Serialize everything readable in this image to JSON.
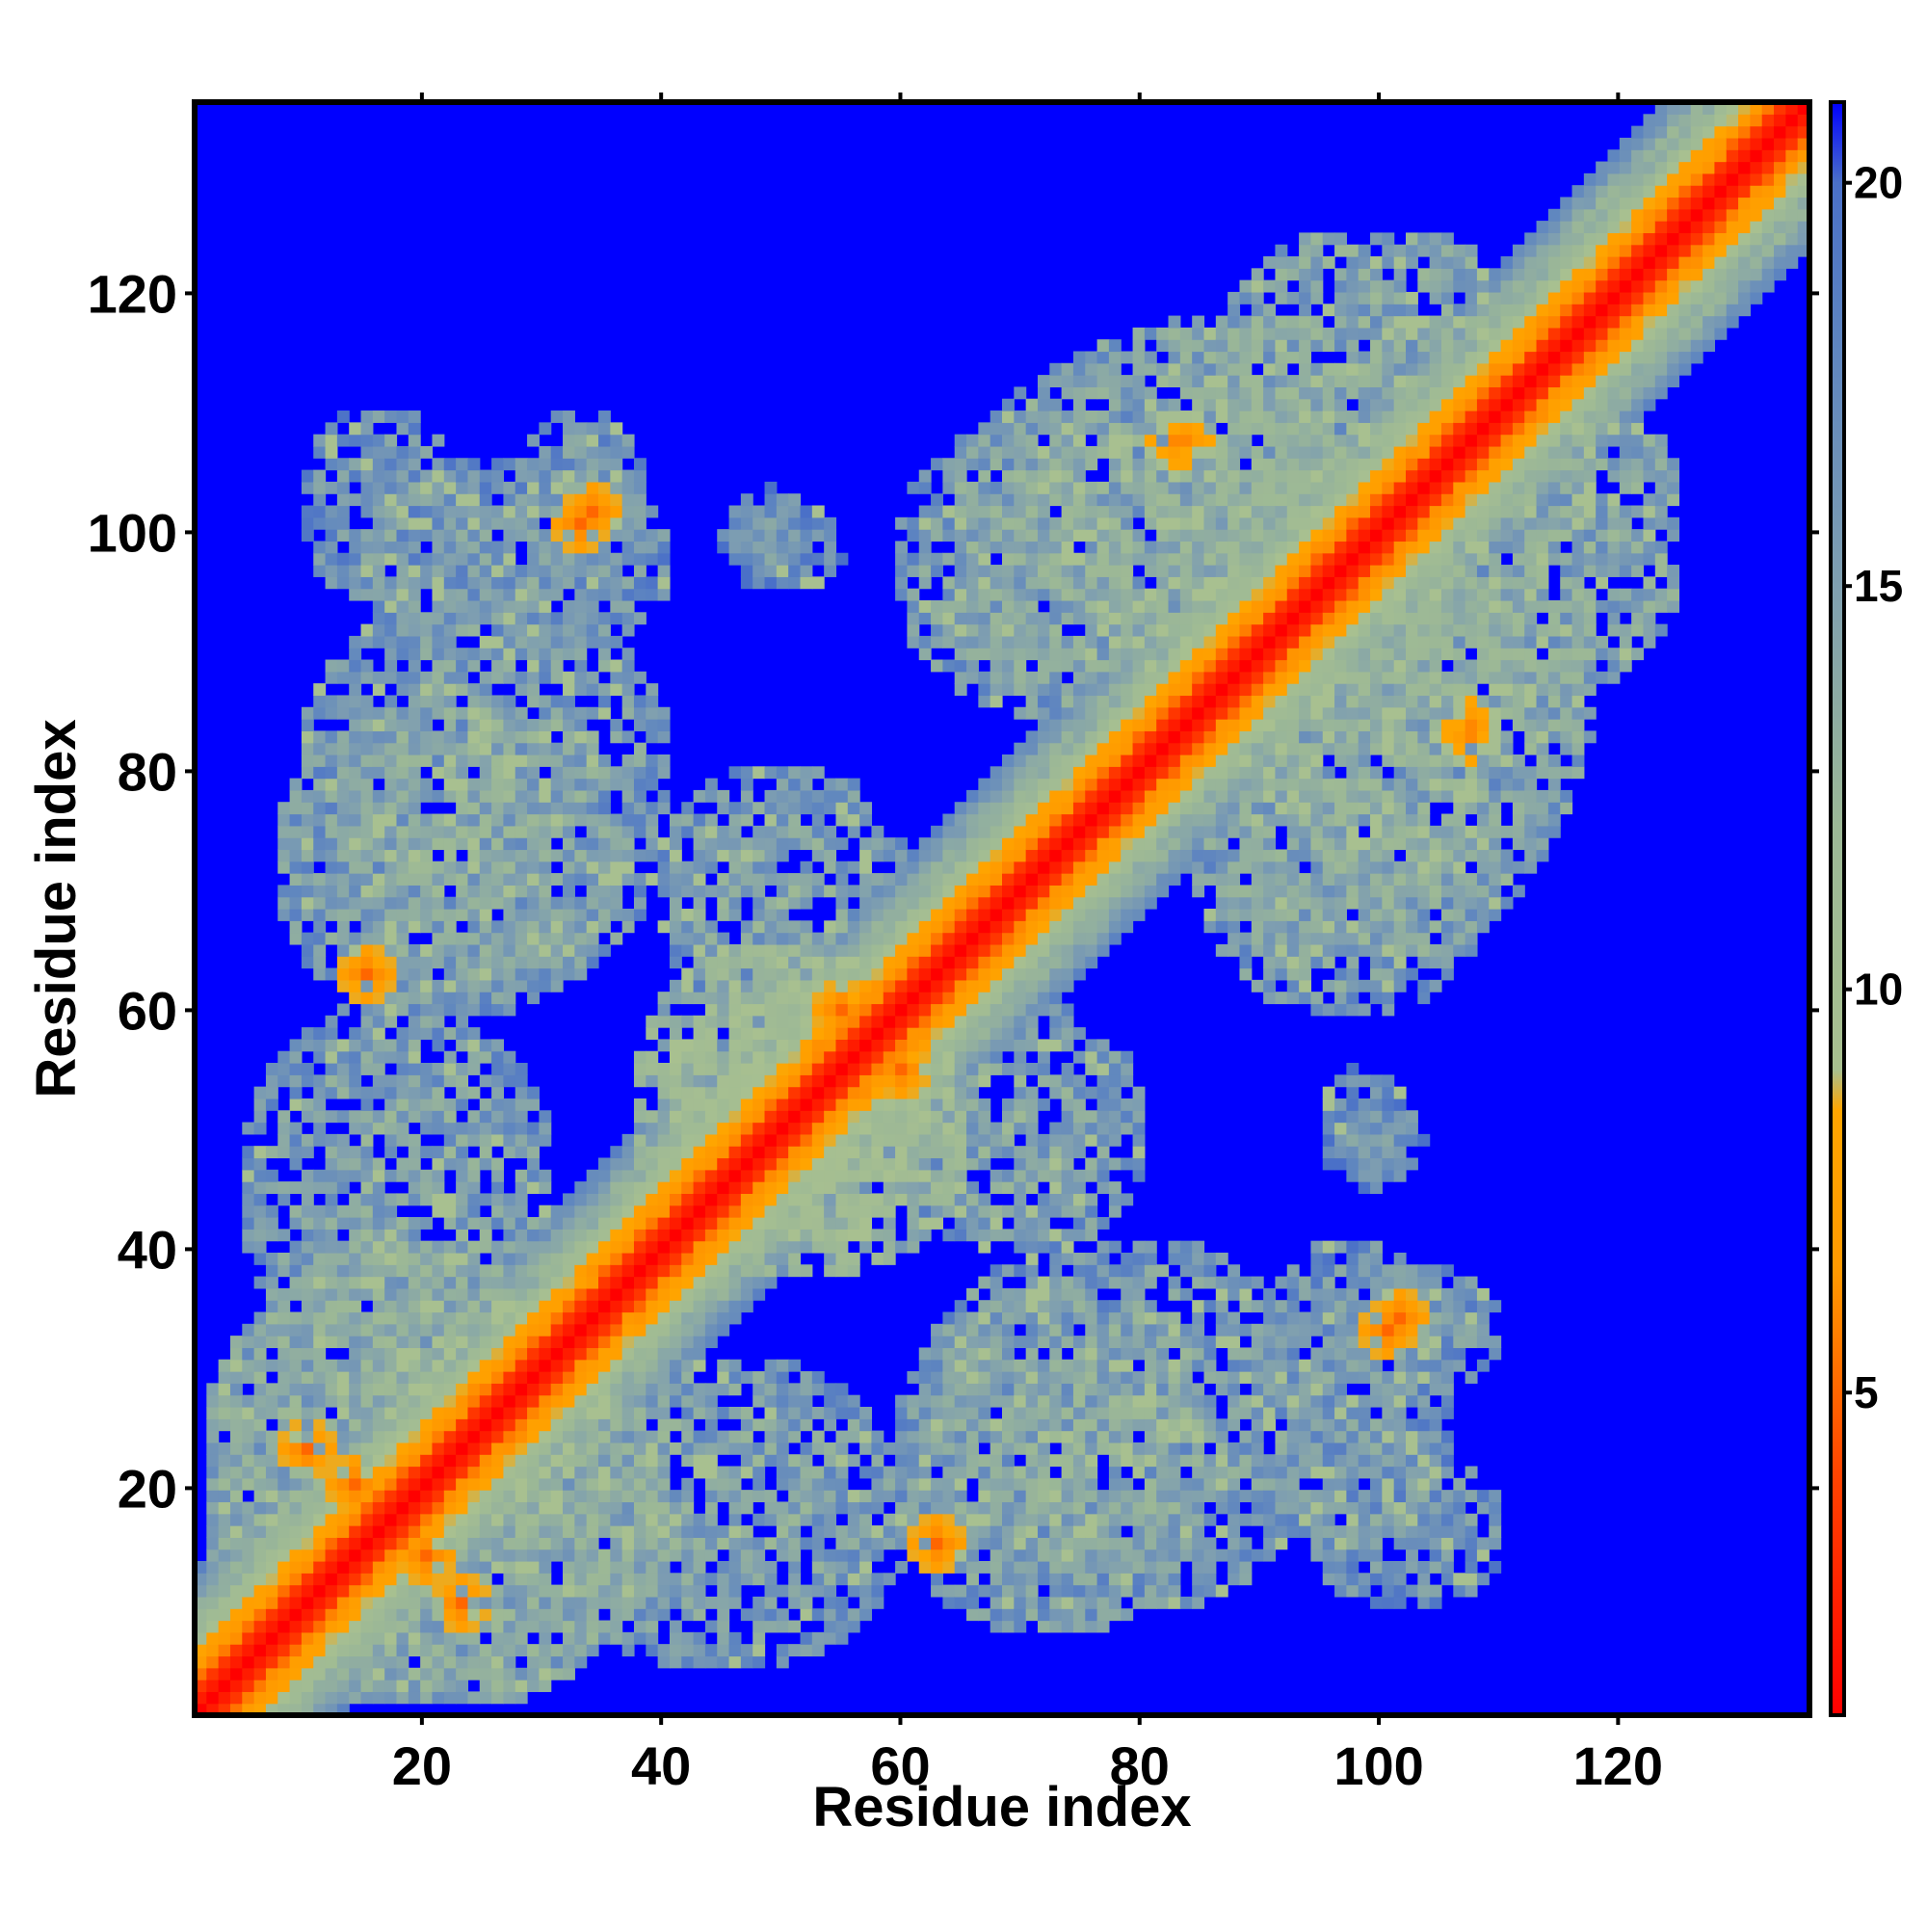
{
  "chart_data": {
    "type": "heatmap",
    "title": "",
    "xlabel": "Residue index",
    "ylabel": "Residue index",
    "xlim": [
      1,
      136
    ],
    "ylim": [
      1,
      136
    ],
    "xticks": [
      20,
      40,
      60,
      80,
      100,
      120
    ],
    "yticks": [
      20,
      40,
      60,
      80,
      100,
      120
    ],
    "xtick_labels": [
      "20",
      "40",
      "60",
      "80",
      "100",
      "120"
    ],
    "ytick_labels": [
      "20",
      "40",
      "60",
      "80",
      "100",
      "120"
    ],
    "grid": false,
    "symmetric": true,
    "matrix_size": 136,
    "colorbar": {
      "range": [
        1,
        21
      ],
      "ticks": [
        5,
        10,
        15,
        20
      ],
      "tick_labels": [
        "5",
        "10",
        "15",
        "20"
      ],
      "stops": [
        {
          "value": 1,
          "color": "#ff0000"
        },
        {
          "value": 4,
          "color": "#ff4400"
        },
        {
          "value": 6.5,
          "color": "#ff9900"
        },
        {
          "value": 8.5,
          "color": "#ffa500"
        },
        {
          "value": 9,
          "color": "#a8c090"
        },
        {
          "value": 12,
          "color": "#9cb896"
        },
        {
          "value": 15,
          "color": "#7f9fb0"
        },
        {
          "value": 18,
          "color": "#5e85c0"
        },
        {
          "value": 20,
          "color": "#4a70c8"
        },
        {
          "value": 21,
          "color": "#0000ff"
        }
      ]
    },
    "background_color": "#0000ff",
    "diagonal_band": {
      "width": 6,
      "color_core": "#ff0000",
      "color_edge": "#ff9900"
    },
    "contact_regions": [
      {
        "x": [
          2,
          40
        ],
        "y": [
          2,
          40
        ],
        "level": "medium-high",
        "value": 13
      },
      {
        "x": [
          8,
          35
        ],
        "y": [
          60,
          85
        ],
        "level": "medium",
        "value": 14
      },
      {
        "x": [
          10,
          22
        ],
        "y": [
          95,
          110
        ],
        "level": "medium",
        "value": 15
      },
      {
        "x": [
          28,
          38
        ],
        "y": [
          96,
          110
        ],
        "level": "medium",
        "value": 15
      },
      {
        "x": [
          46,
          52
        ],
        "y": [
          96,
          104
        ],
        "level": "low",
        "value": 16
      },
      {
        "x": [
          60,
          90
        ],
        "y": [
          85,
          110
        ],
        "level": "medium",
        "value": 14
      },
      {
        "x": [
          62,
          95
        ],
        "y": [
          10,
          40
        ],
        "level": "medium",
        "value": 14
      },
      {
        "x": [
          90,
          106
        ],
        "y": [
          15,
          40
        ],
        "level": "medium",
        "value": 15
      },
      {
        "x": [
          96,
          102
        ],
        "y": [
          45,
          55
        ],
        "level": "low",
        "value": 16
      },
      {
        "x": [
          82,
          118
        ],
        "y": [
          65,
          125
        ],
        "level": "medium",
        "value": 13
      },
      {
        "x": [
          38,
          62
        ],
        "y": [
          40,
          65
        ],
        "level": "high",
        "value": 11
      },
      {
        "x": [
          5,
          30
        ],
        "y": [
          30,
          60
        ],
        "level": "medium",
        "value": 14
      },
      {
        "x": [
          60,
          80
        ],
        "y": [
          40,
          60
        ],
        "level": "medium",
        "value": 14
      }
    ],
    "hotspots": [
      {
        "x": 15,
        "y": 63,
        "value": 5
      },
      {
        "x": 14,
        "y": 20,
        "value": 5
      },
      {
        "x": 23,
        "y": 10,
        "value": 5
      },
      {
        "x": 34,
        "y": 102,
        "value": 5
      },
      {
        "x": 55,
        "y": 60,
        "value": 5
      },
      {
        "x": 58,
        "y": 55,
        "value": 6
      },
      {
        "x": 63,
        "y": 15,
        "value": 6
      },
      {
        "x": 101,
        "y": 33,
        "value": 5
      },
      {
        "x": 108,
        "y": 83,
        "value": 6
      },
      {
        "x": 84,
        "y": 108,
        "value": 6
      },
      {
        "x": 78,
        "y": 80,
        "value": 6
      },
      {
        "x": 95,
        "y": 98,
        "value": 6
      }
    ]
  }
}
